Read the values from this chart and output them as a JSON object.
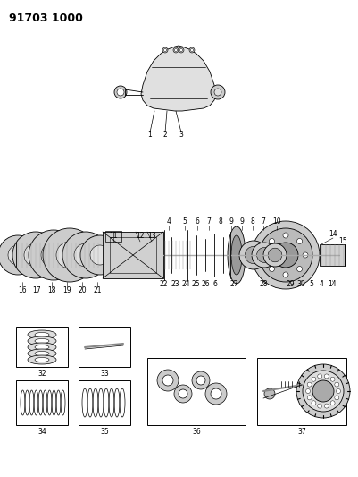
{
  "title": "91703 1000",
  "bg_color": "#ffffff",
  "line_color": "#000000",
  "title_fontsize": 9,
  "label_fontsize": 5.5
}
